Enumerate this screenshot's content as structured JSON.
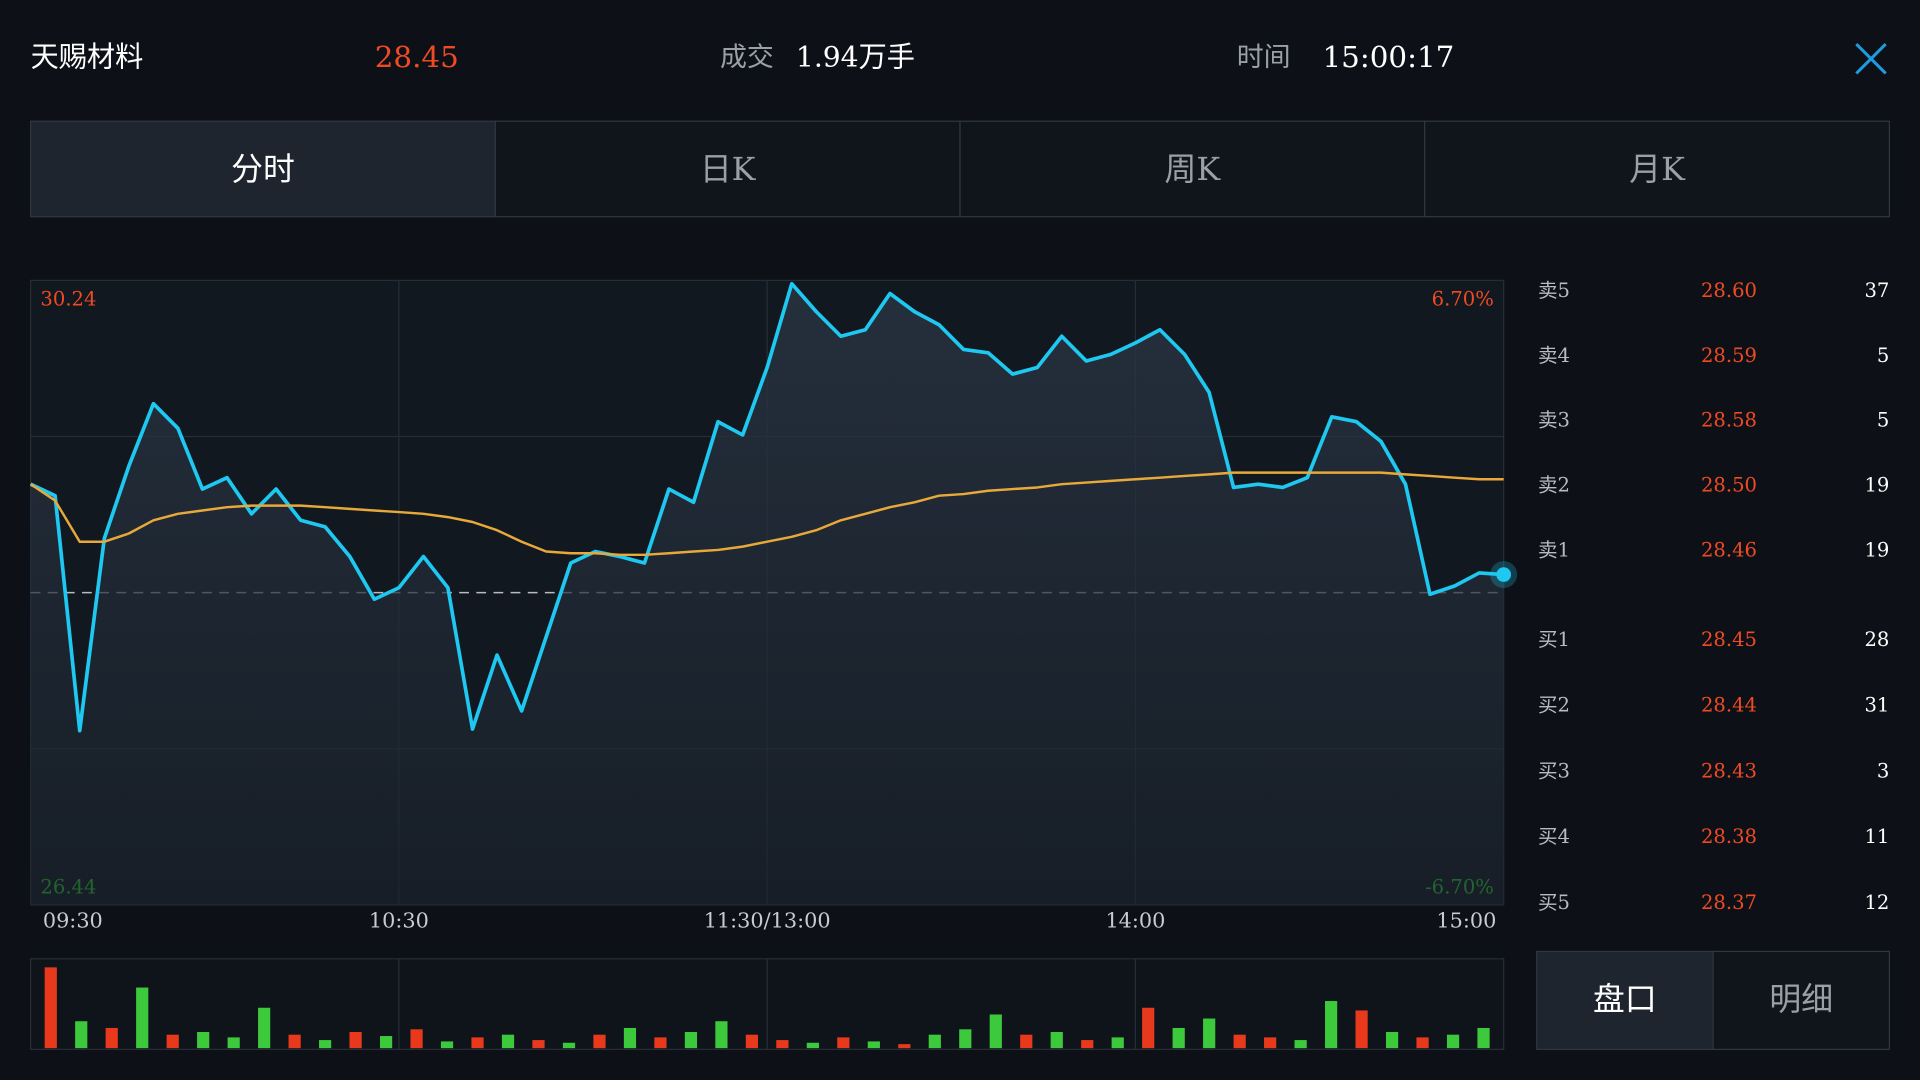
{
  "header": {
    "name": "天赐材料",
    "price": "28.45",
    "volume_label": "成交",
    "volume": "1.94万手",
    "time_label": "时间",
    "time": "15:00:17"
  },
  "tabs": [
    "分时",
    "日K",
    "周K",
    "月K"
  ],
  "chart_data": {
    "type": "line",
    "x": [
      0,
      4,
      8,
      12,
      16,
      20,
      24,
      28,
      32,
      36,
      40,
      44,
      48,
      52,
      56,
      60,
      64,
      68,
      72,
      76,
      80,
      84,
      88,
      92,
      96,
      100,
      104,
      108,
      112,
      116,
      120,
      124,
      128,
      132,
      136,
      140,
      144,
      148,
      152,
      156,
      160,
      164,
      168,
      172,
      176,
      180,
      184,
      188,
      192,
      196,
      200,
      204,
      208,
      212,
      216,
      220,
      224,
      228,
      232,
      236,
      240
    ],
    "series": [
      {
        "color": "#1ec8f0",
        "values": [
          29.0,
          28.93,
          27.5,
          28.67,
          29.11,
          29.49,
          29.34,
          28.97,
          29.04,
          28.82,
          28.97,
          28.78,
          28.74,
          28.56,
          28.3,
          28.37,
          28.56,
          28.37,
          27.51,
          27.96,
          27.62,
          28.07,
          28.52,
          28.59,
          28.56,
          28.52,
          28.97,
          28.89,
          29.38,
          29.3,
          29.71,
          30.22,
          30.05,
          29.9,
          29.94,
          30.16,
          30.05,
          29.97,
          29.82,
          29.8,
          29.67,
          29.71,
          29.9,
          29.75,
          29.79,
          29.86,
          29.94,
          29.79,
          29.56,
          28.98,
          29.0,
          28.98,
          29.04,
          29.41,
          29.38,
          29.26,
          29.0,
          28.33,
          28.38,
          28.46,
          28.45
        ]
      },
      {
        "color": "#e8a93a",
        "values": [
          29.0,
          28.9,
          28.65,
          28.65,
          28.7,
          28.78,
          28.82,
          28.84,
          28.86,
          28.87,
          28.87,
          28.87,
          28.86,
          28.85,
          28.84,
          28.83,
          28.82,
          28.8,
          28.77,
          28.72,
          28.65,
          28.59,
          28.58,
          28.58,
          28.57,
          28.57,
          28.58,
          28.59,
          28.6,
          28.62,
          28.65,
          28.68,
          28.72,
          28.78,
          28.82,
          28.86,
          28.89,
          28.93,
          28.94,
          28.96,
          28.97,
          28.98,
          29.0,
          29.01,
          29.02,
          29.03,
          29.04,
          29.05,
          29.06,
          29.07,
          29.07,
          29.07,
          29.07,
          29.07,
          29.07,
          29.07,
          29.06,
          29.05,
          29.04,
          29.03,
          29.03
        ]
      }
    ],
    "xlim": [
      0,
      240
    ],
    "xticks": [
      {
        "value": 0,
        "label": "09:30"
      },
      {
        "value": 60,
        "label": "10:30"
      },
      {
        "value": 120,
        "label": "11:30/13:00"
      },
      {
        "value": 180,
        "label": "14:00"
      },
      {
        "value": 240,
        "label": "15:00"
      }
    ],
    "ylim": [
      26.44,
      30.24
    ],
    "yticks": [
      26.44,
      30.24
    ],
    "y2lim": [
      -6.7,
      6.7
    ],
    "y2ticks": [
      {
        "value": 6.7,
        "label": "6.70%"
      },
      {
        "value": -6.7,
        "label": "-6.70%"
      }
    ],
    "prev_close": 28.34,
    "volume": {
      "ylim": [
        0,
        60
      ],
      "values": [
        60,
        20,
        15,
        45,
        10,
        12,
        8,
        30,
        10,
        6,
        12,
        9,
        14,
        5,
        8,
        10,
        6,
        4,
        10,
        15,
        8,
        12,
        20,
        10,
        6,
        4,
        8,
        5,
        3,
        10,
        14,
        25,
        10,
        12,
        6,
        8,
        30,
        15,
        22,
        10,
        8,
        6,
        35,
        28,
        12,
        8,
        10,
        15
      ],
      "colors": [
        "#e8391c",
        "#3cc93c",
        "#e8391c",
        "#3cc93c",
        "#e8391c",
        "#3cc93c",
        "#3cc93c",
        "#3cc93c",
        "#e8391c",
        "#3cc93c",
        "#e8391c",
        "#3cc93c",
        "#e8391c",
        "#3cc93c",
        "#e8391c",
        "#3cc93c",
        "#e8391c",
        "#3cc93c",
        "#e8391c",
        "#3cc93c",
        "#e8391c",
        "#3cc93c",
        "#3cc93c",
        "#e8391c",
        "#e8391c",
        "#3cc93c",
        "#e8391c",
        "#3cc93c",
        "#e8391c",
        "#3cc93c",
        "#3cc93c",
        "#3cc93c",
        "#e8391c",
        "#3cc93c",
        "#e8391c",
        "#3cc93c",
        "#e8391c",
        "#3cc93c",
        "#3cc93c",
        "#e8391c",
        "#e8391c",
        "#3cc93c",
        "#3cc93c",
        "#e8391c",
        "#3cc93c",
        "#e8391c",
        "#3cc93c",
        "#3cc93c"
      ]
    }
  },
  "order_book": {
    "asks": [
      {
        "label": "卖5",
        "price": "28.60",
        "qty": "37"
      },
      {
        "label": "卖4",
        "price": "28.59",
        "qty": "5"
      },
      {
        "label": "卖3",
        "price": "28.58",
        "qty": "5"
      },
      {
        "label": "卖2",
        "price": "28.50",
        "qty": "19"
      },
      {
        "label": "卖1",
        "price": "28.46",
        "qty": "19"
      }
    ],
    "bids": [
      {
        "label": "买1",
        "price": "28.45",
        "qty": "28"
      },
      {
        "label": "买2",
        "price": "28.44",
        "qty": "31"
      },
      {
        "label": "买3",
        "price": "28.43",
        "qty": "3"
      },
      {
        "label": "买4",
        "price": "28.38",
        "qty": "11"
      },
      {
        "label": "买5",
        "price": "28.37",
        "qty": "12"
      }
    ]
  },
  "bottom_tabs": [
    "盘口",
    "明细"
  ]
}
